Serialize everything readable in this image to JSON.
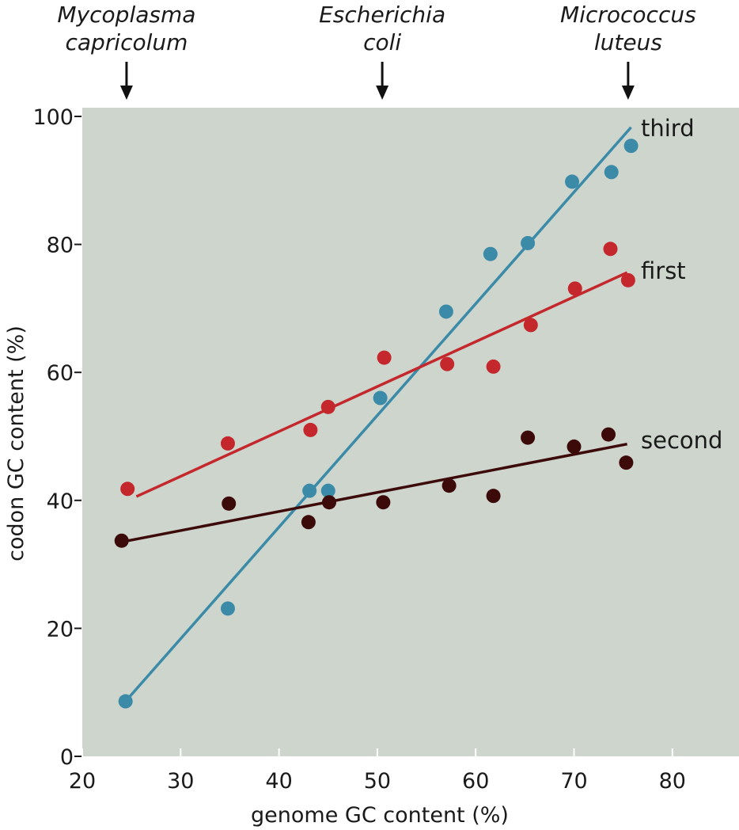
{
  "chart_data": {
    "type": "scatter",
    "title": "",
    "xlabel": "genome GC content (%)",
    "ylabel": "codon GC content (%)",
    "xlim": [
      20,
      87
    ],
    "ylim": [
      0,
      100
    ],
    "xticks": [
      20,
      30,
      40,
      50,
      60,
      70,
      80
    ],
    "yticks": [
      0,
      20,
      40,
      60,
      80,
      100
    ],
    "grid": false,
    "colors": {
      "background": "#cdd5cd",
      "third": "#3b8ba8",
      "first": "#c4282d",
      "second": "#3d0a0a"
    },
    "organisms": [
      {
        "line1": "Mycoplasma",
        "line2": "capricolum",
        "x": 24.5
      },
      {
        "line1": "Escherichia",
        "line2": "coli",
        "x": 50.5
      },
      {
        "line1": "Micrococcus",
        "line2": "luteus",
        "x": 75.5
      }
    ],
    "series": [
      {
        "name": "third",
        "points": [
          [
            24.4,
            8.6
          ],
          [
            34.8,
            23.1
          ],
          [
            43.1,
            41.5
          ],
          [
            45.0,
            41.5
          ],
          [
            50.3,
            56.0
          ],
          [
            57.0,
            69.5
          ],
          [
            61.5,
            78.5
          ],
          [
            65.3,
            80.2
          ],
          [
            69.8,
            89.8
          ],
          [
            73.8,
            91.3
          ],
          [
            75.8,
            95.4
          ]
        ],
        "fit": [
          [
            24.4,
            8.6
          ],
          [
            75.8,
            98.3
          ]
        ]
      },
      {
        "name": "first",
        "points": [
          [
            24.6,
            41.8
          ],
          [
            34.8,
            48.9
          ],
          [
            43.2,
            51.0
          ],
          [
            45.0,
            54.6
          ],
          [
            50.7,
            62.3
          ],
          [
            57.1,
            61.3
          ],
          [
            61.8,
            60.9
          ],
          [
            65.6,
            67.4
          ],
          [
            70.1,
            73.1
          ],
          [
            73.7,
            79.3
          ],
          [
            75.5,
            74.4
          ]
        ],
        "fit": [
          [
            25.5,
            40.6
          ],
          [
            75.4,
            75.6
          ]
        ]
      },
      {
        "name": "second",
        "points": [
          [
            24.0,
            33.7
          ],
          [
            34.9,
            39.5
          ],
          [
            43.0,
            36.6
          ],
          [
            45.1,
            39.7
          ],
          [
            50.6,
            39.7
          ],
          [
            57.3,
            42.3
          ],
          [
            61.8,
            40.7
          ],
          [
            65.3,
            49.8
          ],
          [
            70.0,
            48.4
          ],
          [
            73.5,
            50.3
          ],
          [
            75.3,
            45.9
          ]
        ],
        "fit": [
          [
            24.0,
            33.5
          ],
          [
            75.4,
            48.8
          ]
        ]
      }
    ]
  }
}
